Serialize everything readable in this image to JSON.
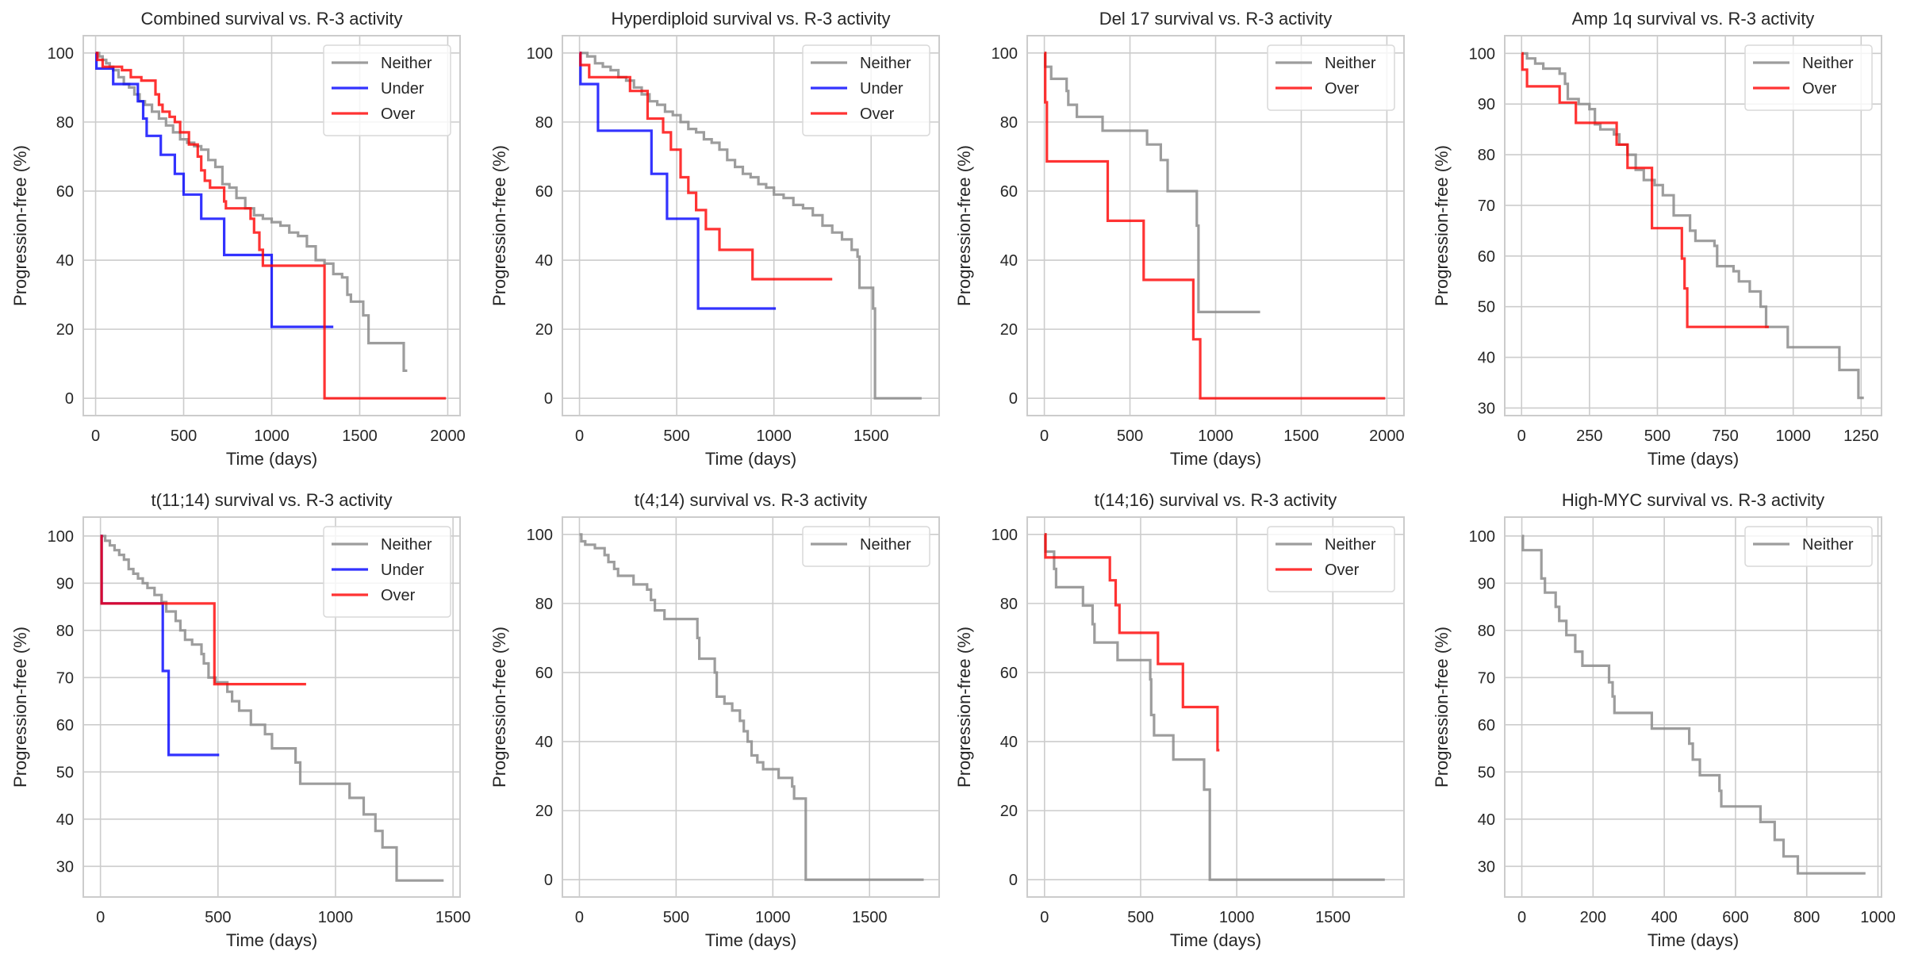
{
  "figure": {
    "series_colors": {
      "Neither": "#8c8c8c",
      "Under": "#0000ff",
      "Over": "#ff0000"
    }
  },
  "chart_data": [
    {
      "type": "line",
      "title": "Combined survival vs. R-3 activity",
      "xlabel": "Time (days)",
      "ylabel": "Progression-free (%)",
      "xlim": [
        -70,
        2070
      ],
      "ylim": [
        -5,
        105
      ],
      "xticks": [
        0,
        500,
        1000,
        1500,
        2000
      ],
      "yticks": [
        0,
        20,
        40,
        60,
        80,
        100
      ],
      "grid": true,
      "legend": "top-right",
      "series": [
        {
          "name": "Neither",
          "step": true,
          "x": [
            0,
            20,
            40,
            60,
            80,
            100,
            130,
            160,
            190,
            220,
            250,
            280,
            320,
            360,
            400,
            440,
            480,
            520,
            560,
            600,
            640,
            680,
            720,
            760,
            800,
            850,
            900,
            950,
            1000,
            1050,
            1100,
            1150,
            1200,
            1250,
            1300,
            1350,
            1400,
            1430,
            1450,
            1500,
            1520,
            1550,
            1750,
            1770
          ],
          "y": [
            100,
            99,
            98,
            97,
            96,
            95,
            93,
            91,
            90,
            88,
            86,
            85,
            83,
            81,
            79,
            77,
            75,
            74,
            73,
            72,
            69,
            67,
            62,
            61,
            58,
            55,
            53,
            52,
            51,
            50,
            48,
            47,
            44,
            40,
            39,
            36,
            35,
            30,
            28,
            28,
            24,
            16,
            8,
            8
          ]
        },
        {
          "name": "Under",
          "step": true,
          "x": [
            0,
            5,
            100,
            240,
            270,
            290,
            370,
            450,
            500,
            600,
            730,
            1000,
            1350
          ],
          "y": [
            100,
            95.5,
            91,
            86,
            81,
            76,
            70.5,
            65,
            59,
            52,
            41.5,
            20.7,
            20.7
          ]
        },
        {
          "name": "Over",
          "step": true,
          "x": [
            0,
            10,
            40,
            150,
            200,
            260,
            340,
            360,
            380,
            420,
            450,
            480,
            500,
            530,
            580,
            600,
            620,
            650,
            730,
            740,
            880,
            900,
            930,
            950,
            1300,
            1990
          ],
          "y": [
            100,
            98,
            96,
            95,
            93,
            92,
            88,
            85,
            83,
            81.5,
            80,
            77,
            77,
            73.5,
            70,
            66,
            63,
            61,
            57,
            55,
            52,
            48,
            43,
            38.4,
            0,
            0
          ]
        }
      ]
    },
    {
      "type": "line",
      "title": "Hyperdiploid survival vs. R-3 activity",
      "xlabel": "Time (days)",
      "ylabel": "Progression-free (%)",
      "xlim": [
        -88,
        1850
      ],
      "ylim": [
        -5,
        105
      ],
      "xticks": [
        0,
        500,
        1000,
        1500
      ],
      "yticks": [
        0,
        20,
        40,
        60,
        80,
        100
      ],
      "grid": true,
      "legend": "top-right",
      "series": [
        {
          "name": "Neither",
          "step": true,
          "x": [
            0,
            40,
            80,
            120,
            160,
            200,
            240,
            280,
            320,
            360,
            400,
            440,
            480,
            520,
            560,
            600,
            640,
            680,
            720,
            760,
            800,
            840,
            880,
            920,
            960,
            1000,
            1050,
            1100,
            1150,
            1200,
            1250,
            1300,
            1350,
            1400,
            1430,
            1440,
            1500,
            1510,
            1520,
            1760
          ],
          "y": [
            100,
            99,
            97,
            96,
            95,
            93,
            92,
            90,
            88,
            86,
            85,
            83,
            82,
            80,
            78,
            77,
            75,
            74,
            72,
            69,
            67,
            65,
            64,
            62,
            61,
            59,
            58,
            56,
            55,
            53,
            50,
            48,
            46,
            43,
            41,
            32,
            32,
            26,
            0,
            0
          ]
        },
        {
          "name": "Under",
          "step": true,
          "x": [
            0,
            5,
            95,
            370,
            450,
            610,
            1010
          ],
          "y": [
            100,
            91,
            77.5,
            65,
            52,
            26,
            26
          ]
        },
        {
          "name": "Over",
          "step": true,
          "x": [
            0,
            5,
            50,
            260,
            350,
            430,
            470,
            520,
            560,
            600,
            650,
            720,
            890,
            1300
          ],
          "y": [
            100,
            96.5,
            93,
            89,
            81,
            77,
            72,
            64,
            59.5,
            54.5,
            49,
            43,
            34.5,
            34.5
          ]
        }
      ]
    },
    {
      "type": "line",
      "title": "Del 17 survival vs. R-3 activity",
      "xlabel": "Time (days)",
      "ylabel": "Progression-free (%)",
      "xlim": [
        -100,
        2100
      ],
      "ylim": [
        -5,
        105
      ],
      "xticks": [
        0,
        500,
        1000,
        1500,
        2000
      ],
      "yticks": [
        0,
        20,
        40,
        60,
        80,
        100
      ],
      "grid": true,
      "legend": "top-right",
      "series": [
        {
          "name": "Neither",
          "step": true,
          "x": [
            0,
            5,
            40,
            130,
            140,
            190,
            340,
            600,
            680,
            720,
            890,
            900,
            1260
          ],
          "y": [
            100,
            96,
            92.5,
            89,
            85,
            81.5,
            77.5,
            73.5,
            69,
            60,
            50,
            25,
            25
          ]
        },
        {
          "name": "Over",
          "step": true,
          "x": [
            0,
            5,
            15,
            370,
            580,
            870,
            910,
            1990
          ],
          "y": [
            100,
            85.7,
            68.6,
            51.4,
            34.3,
            17.1,
            0,
            0
          ]
        }
      ]
    },
    {
      "type": "line",
      "title": "Amp 1q survival vs. R-3 activity",
      "xlabel": "Time (days)",
      "ylabel": "Progression-free (%)",
      "xlim": [
        -62,
        1325
      ],
      "ylim": [
        28.5,
        103.5
      ],
      "xticks": [
        0,
        250,
        500,
        750,
        1000,
        1250
      ],
      "yticks": [
        30,
        40,
        50,
        60,
        70,
        80,
        90,
        100
      ],
      "grid": true,
      "legend": "top-right",
      "series": [
        {
          "name": "Neither",
          "step": true,
          "x": [
            0,
            20,
            50,
            80,
            140,
            160,
            170,
            210,
            250,
            270,
            290,
            340,
            360,
            390,
            420,
            450,
            490,
            520,
            560,
            620,
            640,
            710,
            720,
            780,
            800,
            840,
            880,
            900,
            980,
            1170,
            1240,
            1260
          ],
          "y": [
            100,
            99,
            98,
            97,
            96,
            94,
            91,
            90,
            89,
            86,
            85,
            84,
            82,
            80,
            77,
            75,
            74,
            72,
            68,
            65,
            63,
            62,
            58,
            57,
            55,
            53,
            50,
            46,
            42,
            37.5,
            32,
            32
          ]
        },
        {
          "name": "Over",
          "step": true,
          "x": [
            0,
            3,
            20,
            140,
            200,
            350,
            390,
            480,
            590,
            600,
            610,
            910
          ],
          "y": [
            100,
            96.8,
            93.5,
            90.3,
            86.3,
            82,
            77.4,
            65.5,
            59.5,
            53.6,
            46,
            46
          ]
        }
      ]
    },
    {
      "type": "line",
      "title": "t(11;14) survival vs. R-3 activity",
      "xlabel": "Time (days)",
      "ylabel": "Progression-free (%)",
      "xlim": [
        -73,
        1530
      ],
      "ylim": [
        23.5,
        104
      ],
      "xticks": [
        0,
        500,
        1000,
        1500
      ],
      "yticks": [
        30,
        40,
        50,
        60,
        70,
        80,
        90,
        100
      ],
      "grid": true,
      "legend": "top-right",
      "series": [
        {
          "name": "Neither",
          "step": true,
          "x": [
            0,
            20,
            40,
            60,
            80,
            100,
            120,
            140,
            160,
            180,
            200,
            230,
            260,
            280,
            320,
            340,
            360,
            390,
            430,
            440,
            460,
            490,
            520,
            540,
            560,
            590,
            640,
            700,
            730,
            830,
            850,
            1060,
            1120,
            1170,
            1200,
            1260,
            1460
          ],
          "y": [
            100,
            99,
            98,
            97,
            96,
            95,
            93,
            92,
            91,
            90,
            89,
            87.5,
            86,
            84,
            82,
            80,
            78,
            77,
            75,
            73,
            70,
            69,
            69,
            67,
            65,
            63,
            60,
            58,
            55,
            52,
            47.5,
            44.5,
            41,
            37.5,
            34,
            27,
            27
          ]
        },
        {
          "name": "Under",
          "step": true,
          "x": [
            0,
            5,
            265,
            290,
            505
          ],
          "y": [
            100,
            85.7,
            71.4,
            53.6,
            53.6
          ]
        },
        {
          "name": "Over",
          "step": true,
          "x": [
            0,
            5,
            485,
            875
          ],
          "y": [
            100,
            85.7,
            68.6,
            68.6
          ]
        }
      ]
    },
    {
      "type": "line",
      "title": "t(4;14) survival vs. R-3 activity",
      "xlabel": "Time (days)",
      "ylabel": "Progression-free (%)",
      "xlim": [
        -88,
        1860
      ],
      "ylim": [
        -5,
        105
      ],
      "xticks": [
        0,
        500,
        1000,
        1500
      ],
      "yticks": [
        0,
        20,
        40,
        60,
        80,
        100
      ],
      "grid": true,
      "legend": "top-right",
      "series": [
        {
          "name": "Neither",
          "step": true,
          "x": [
            0,
            10,
            30,
            80,
            130,
            150,
            180,
            200,
            280,
            350,
            370,
            390,
            440,
            610,
            620,
            700,
            710,
            750,
            790,
            830,
            850,
            870,
            890,
            920,
            950,
            1030,
            1100,
            1110,
            1170,
            1780
          ],
          "y": [
            100,
            98,
            97,
            96,
            94,
            92,
            90,
            88,
            85.5,
            84,
            81,
            78,
            75.5,
            70,
            64,
            60,
            53,
            51,
            49,
            46,
            43,
            40,
            36,
            34,
            32,
            29.5,
            27,
            23.5,
            0,
            0
          ]
        }
      ]
    },
    {
      "type": "line",
      "title": "t(14;16) survival vs. R-3 activity",
      "xlabel": "Time (days)",
      "ylabel": "Progression-free (%)",
      "xlim": [
        -90,
        1870
      ],
      "ylim": [
        -5,
        105
      ],
      "xticks": [
        0,
        500,
        1000,
        1500
      ],
      "yticks": [
        0,
        20,
        40,
        60,
        80,
        100
      ],
      "grid": true,
      "legend": "top-right",
      "series": [
        {
          "name": "Neither",
          "step": true,
          "x": [
            0,
            5,
            50,
            60,
            200,
            250,
            260,
            380,
            550,
            555,
            570,
            670,
            830,
            860,
            1770
          ],
          "y": [
            100,
            95,
            90,
            84.7,
            79.4,
            74,
            68.7,
            63.6,
            58,
            47.7,
            41.8,
            34.8,
            26.1,
            0,
            0
          ]
        },
        {
          "name": "Over",
          "step": true,
          "x": [
            0,
            5,
            340,
            370,
            390,
            590,
            720,
            900,
            910
          ],
          "y": [
            100,
            93.3,
            86.7,
            79.5,
            71.5,
            62.5,
            50,
            37.5,
            37.5
          ]
        }
      ]
    },
    {
      "type": "line",
      "title": "High-MYC survival vs. R-3 activity",
      "xlabel": "Time (days)",
      "ylabel": "Progression-free (%)",
      "xlim": [
        -48,
        1010
      ],
      "ylim": [
        23.5,
        104
      ],
      "xticks": [
        0,
        200,
        400,
        600,
        800,
        1000
      ],
      "yticks": [
        30,
        40,
        50,
        60,
        70,
        80,
        90,
        100
      ],
      "grid": true,
      "legend": "top-right",
      "series": [
        {
          "name": "Neither",
          "step": true,
          "x": [
            0,
            3,
            55,
            65,
            95,
            105,
            125,
            150,
            170,
            245,
            255,
            260,
            365,
            470,
            480,
            500,
            555,
            560,
            670,
            710,
            735,
            775,
            965
          ],
          "y": [
            100,
            97,
            91,
            88,
            85,
            82,
            79,
            75.5,
            72.5,
            69,
            66,
            62.5,
            59.2,
            56,
            52.6,
            49.3,
            46,
            42.7,
            39.4,
            35.6,
            32.1,
            28.5,
            28.5
          ]
        }
      ]
    }
  ]
}
